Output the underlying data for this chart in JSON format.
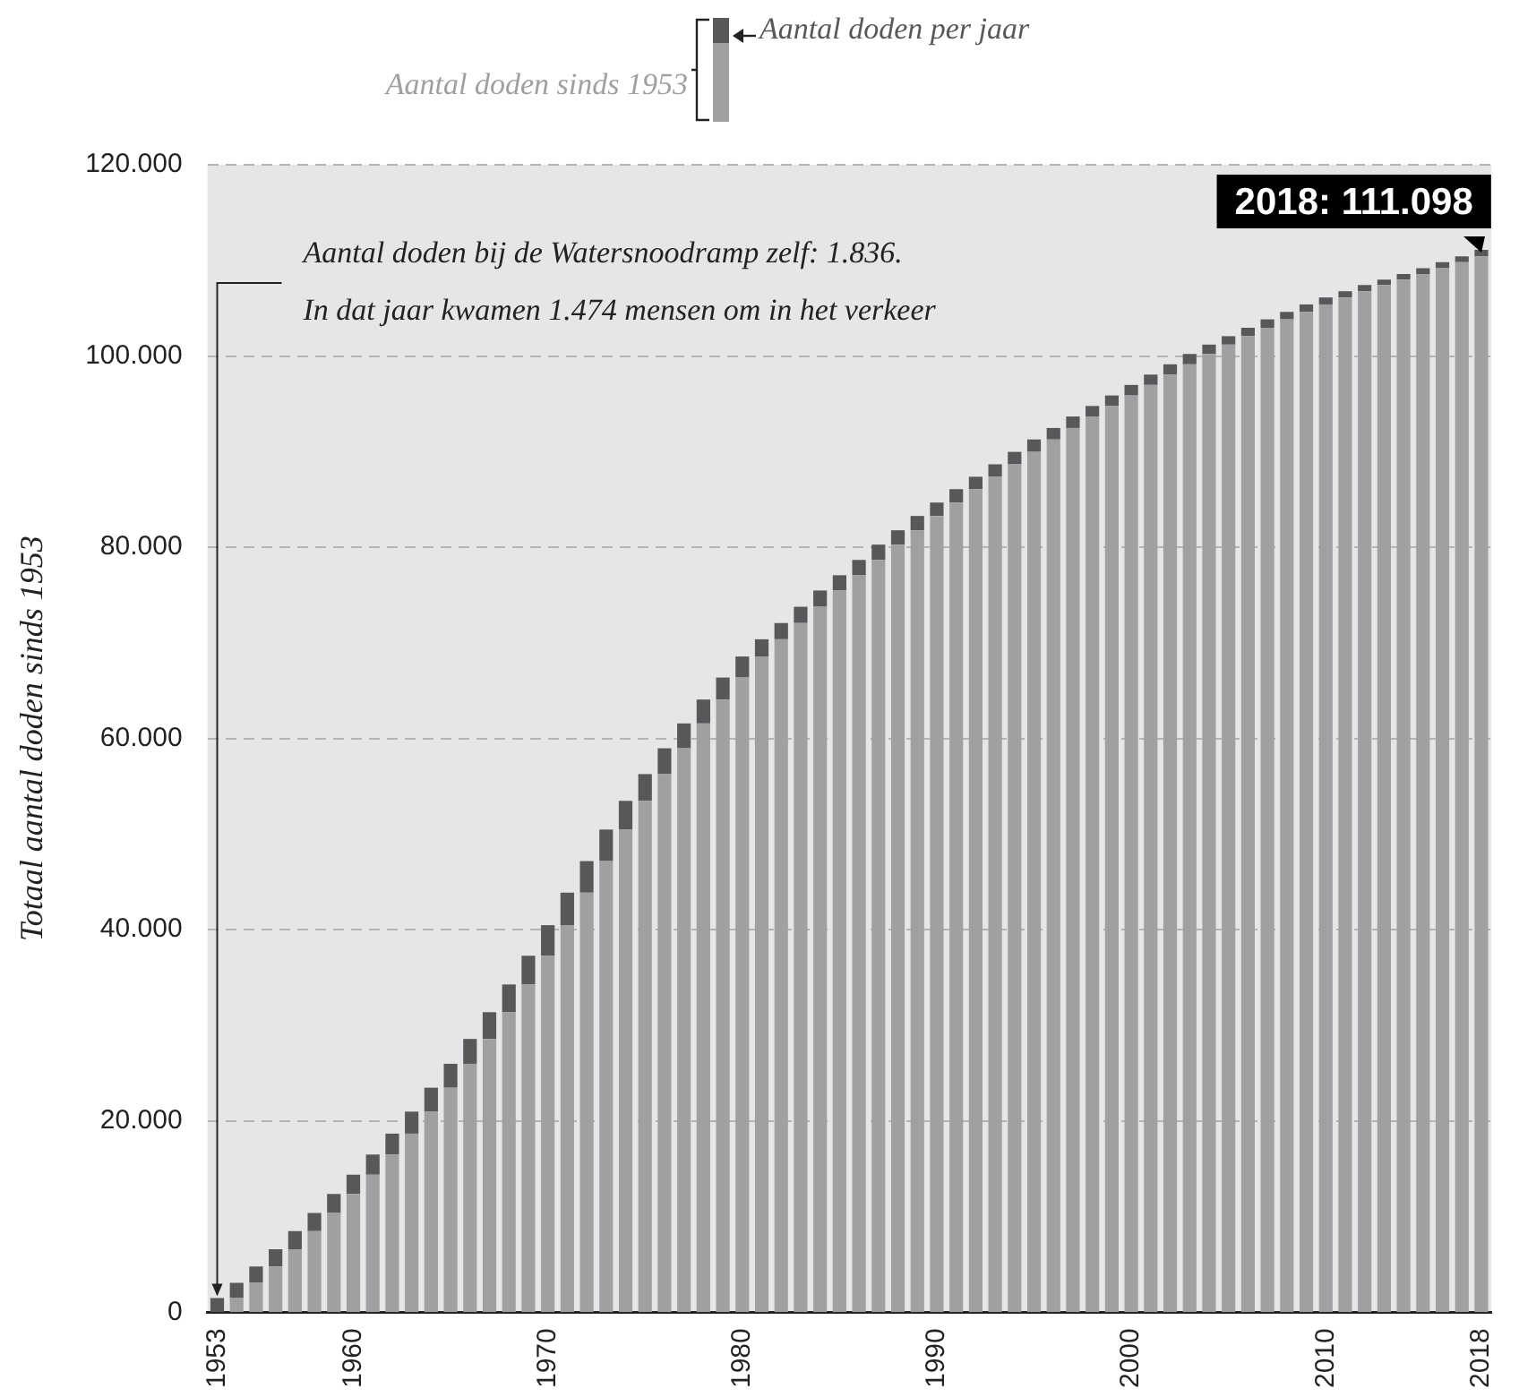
{
  "chart_data": {
    "type": "bar",
    "stacked": true,
    "ylabel": "Totaal aantal doden sinds 1953",
    "categories": [
      "1953",
      null,
      null,
      null,
      null,
      null,
      null,
      "1960",
      null,
      null,
      null,
      null,
      null,
      null,
      null,
      null,
      null,
      "1970",
      null,
      null,
      null,
      null,
      null,
      null,
      null,
      null,
      null,
      "1980",
      null,
      null,
      null,
      null,
      null,
      null,
      null,
      null,
      null,
      "1990",
      null,
      null,
      null,
      null,
      null,
      null,
      null,
      null,
      null,
      "2000",
      null,
      null,
      null,
      null,
      null,
      null,
      null,
      null,
      null,
      "2010",
      null,
      null,
      null,
      null,
      null,
      null,
      null,
      "2018"
    ],
    "series": [
      {
        "name": "Aantal doden sinds 1953",
        "color": "#a0a0a3",
        "values": [
          0,
          1474,
          3074,
          4774,
          6574,
          8474,
          10374,
          12374,
          14374,
          16474,
          18674,
          20974,
          23474,
          25974,
          28574,
          31374,
          34274,
          37274,
          40474,
          43874,
          47174,
          50474,
          53474,
          56274,
          58974,
          61574,
          64074,
          66374,
          68574,
          70374,
          72074,
          73774,
          75474,
          77074,
          78674,
          80274,
          81774,
          83274,
          84674,
          86074,
          87374,
          88674,
          89974,
          91274,
          92474,
          93674,
          94774,
          95874,
          96974,
          98054,
          99134,
          100214,
          101194,
          102074,
          102954,
          103834,
          104614,
          105394,
          106124,
          106774,
          107424,
          107994,
          108564,
          109184,
          109814,
          110424
        ]
      },
      {
        "name": "Aantal doden per jaar",
        "color": "#58585b",
        "values": [
          1474,
          1600,
          1700,
          1800,
          1900,
          1900,
          2000,
          2000,
          2100,
          2200,
          2300,
          2500,
          2500,
          2600,
          2800,
          2900,
          3000,
          3200,
          3400,
          3300,
          3300,
          3000,
          2800,
          2700,
          2600,
          2500,
          2300,
          2200,
          1800,
          1700,
          1700,
          1700,
          1600,
          1600,
          1600,
          1500,
          1500,
          1400,
          1400,
          1300,
          1300,
          1300,
          1300,
          1200,
          1200,
          1100,
          1100,
          1100,
          1080,
          1080,
          1080,
          980,
          880,
          880,
          880,
          780,
          780,
          730,
          650,
          650,
          570,
          570,
          620,
          630,
          610,
          674
        ]
      }
    ],
    "ylim": [
      0,
      120000
    ],
    "yticks": [
      0,
      {
        "value": 20000,
        "label": "20.000"
      },
      {
        "value": 40000,
        "label": "40.000"
      },
      {
        "value": 60000,
        "label": "60.000"
      },
      {
        "value": 80000,
        "label": "80.000"
      },
      {
        "value": 100000,
        "label": "100.000"
      },
      {
        "value": 120000,
        "label": "120.000"
      }
    ],
    "grid": "y",
    "legend": "top",
    "annotations": [
      {
        "text": "Aantal doden bij de Watersnoodramp zelf: 1.836.\nIn dat jaar kwamen 1.474 mensen om in het verkeer",
        "x": "1953",
        "y": 1474
      },
      {
        "text": "2018: 111.098",
        "x": "2018",
        "y": 111098
      }
    ]
  }
}
